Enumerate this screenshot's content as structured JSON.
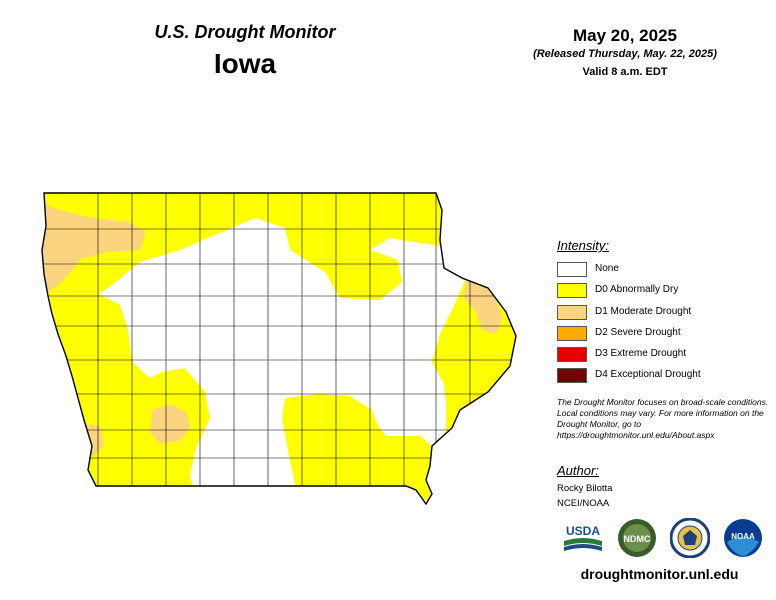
{
  "header": {
    "title": "U.S. Drought Monitor",
    "state": "Iowa",
    "date": "May 20, 2025",
    "released": "(Released Thursday, May. 22, 2025)",
    "valid": "Valid 8 a.m. EDT"
  },
  "legend": {
    "title": "Intensity:",
    "items": [
      {
        "label": "None",
        "color": "#ffffff"
      },
      {
        "label": "D0 Abnormally Dry",
        "color": "#ffff00"
      },
      {
        "label": "D1 Moderate Drought",
        "color": "#fcd37f"
      },
      {
        "label": "D2 Severe Drought",
        "color": "#ffaa00"
      },
      {
        "label": "D3 Extreme Drought",
        "color": "#e60000"
      },
      {
        "label": "D4 Exceptional Drought",
        "color": "#730000"
      }
    ]
  },
  "note": "The Drought Monitor focuses on broad-scale conditions. Local conditions may vary. For more information on the Drought Monitor, go to https://droughtmonitor.unl.edu/About.aspx",
  "author": {
    "title": "Author:",
    "name": "Rocky Bilotta",
    "org": "NCEI/NOAA"
  },
  "logos": {
    "usda": "USDA",
    "ndmc": "NDMC",
    "noaa": "NOAA"
  },
  "url": "droughtmonitor.unl.edu"
}
